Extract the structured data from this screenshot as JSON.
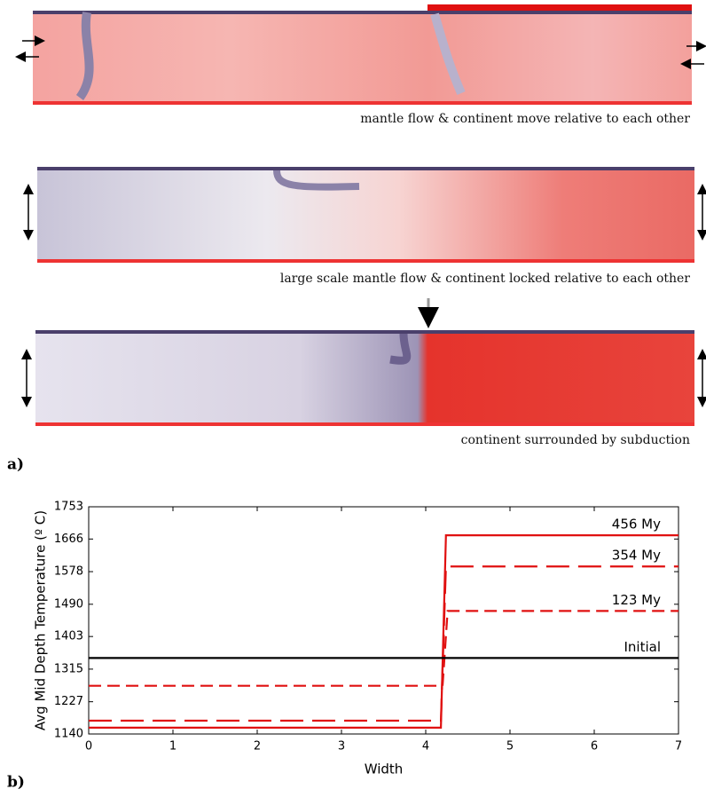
{
  "panel_a": {
    "label": "a)",
    "captions": [
      "mantle flow & continent move relative to each other",
      "large scale mantle flow & continent locked relative to each other",
      "continent surrounded by subduction"
    ]
  },
  "panel_b": {
    "label": "b)"
  },
  "chart_data": {
    "type": "line",
    "xlabel": "Width",
    "ylabel": "Avg Mid Depth Temperature (º C)",
    "xlim": [
      0,
      7
    ],
    "xticks": [
      0,
      1,
      2,
      3,
      4,
      5,
      6,
      7
    ],
    "ylim": [
      1140,
      1753
    ],
    "yticks": [
      1140,
      1227,
      1315,
      1403,
      1490,
      1578,
      1666,
      1753
    ],
    "series": [
      {
        "name": "456 My",
        "color": "#e01010",
        "style": "solid",
        "x": [
          0,
          4.18,
          4.24,
          7
        ],
        "values": [
          1157,
          1157,
          1676,
          1676
        ]
      },
      {
        "name": "354 My",
        "color": "#e01010",
        "style": "long-dash",
        "x": [
          0,
          4.18,
          4.24,
          7
        ],
        "values": [
          1176,
          1176,
          1592,
          1592
        ]
      },
      {
        "name": "123 My",
        "color": "#e01010",
        "style": "dash",
        "x": [
          0,
          4.2,
          4.26,
          7
        ],
        "values": [
          1270,
          1270,
          1472,
          1472
        ]
      },
      {
        "name": "Initial",
        "color": "#000000",
        "style": "solid",
        "x": [
          0,
          7
        ],
        "values": [
          1345,
          1345
        ]
      }
    ]
  }
}
